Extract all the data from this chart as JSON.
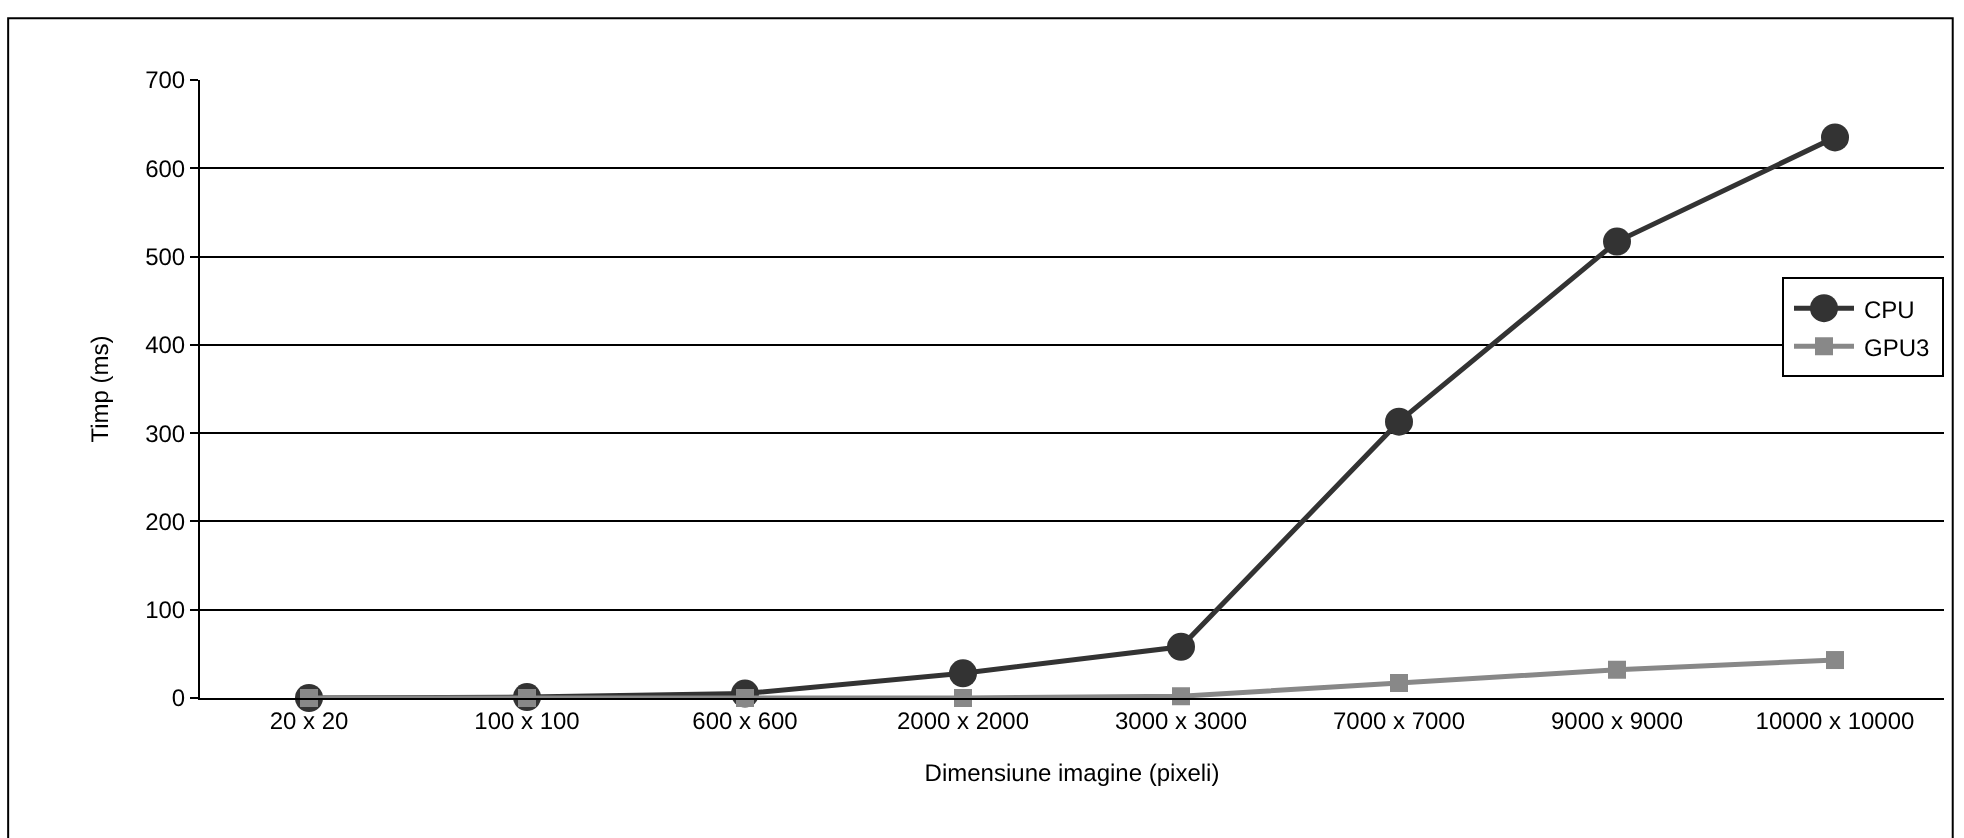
{
  "chart_data": {
    "type": "line",
    "xlabel": "Dimensiune imagine (pixeli)",
    "ylabel": "Timp (ms)",
    "categories": [
      "20 x 20",
      "100 x 100",
      "600 x 600",
      "2000 x 2000",
      "3000 x 3000",
      "7000 x 7000",
      "9000 x 9000",
      "10000 x 10000"
    ],
    "series": [
      {
        "name": "CPU",
        "color": "#333333",
        "marker": "circle",
        "values": [
          0,
          1,
          5,
          28,
          58,
          313,
          517,
          635
        ]
      },
      {
        "name": "GPU3",
        "color": "#888888",
        "marker": "square",
        "values": [
          0,
          0,
          0,
          0,
          2,
          17,
          32,
          43
        ]
      }
    ],
    "ylim": [
      0,
      700
    ],
    "yticks": [
      0,
      100,
      200,
      300,
      400,
      500,
      600,
      700
    ],
    "grid": "y",
    "legend": "right",
    "line_style": "solid"
  }
}
